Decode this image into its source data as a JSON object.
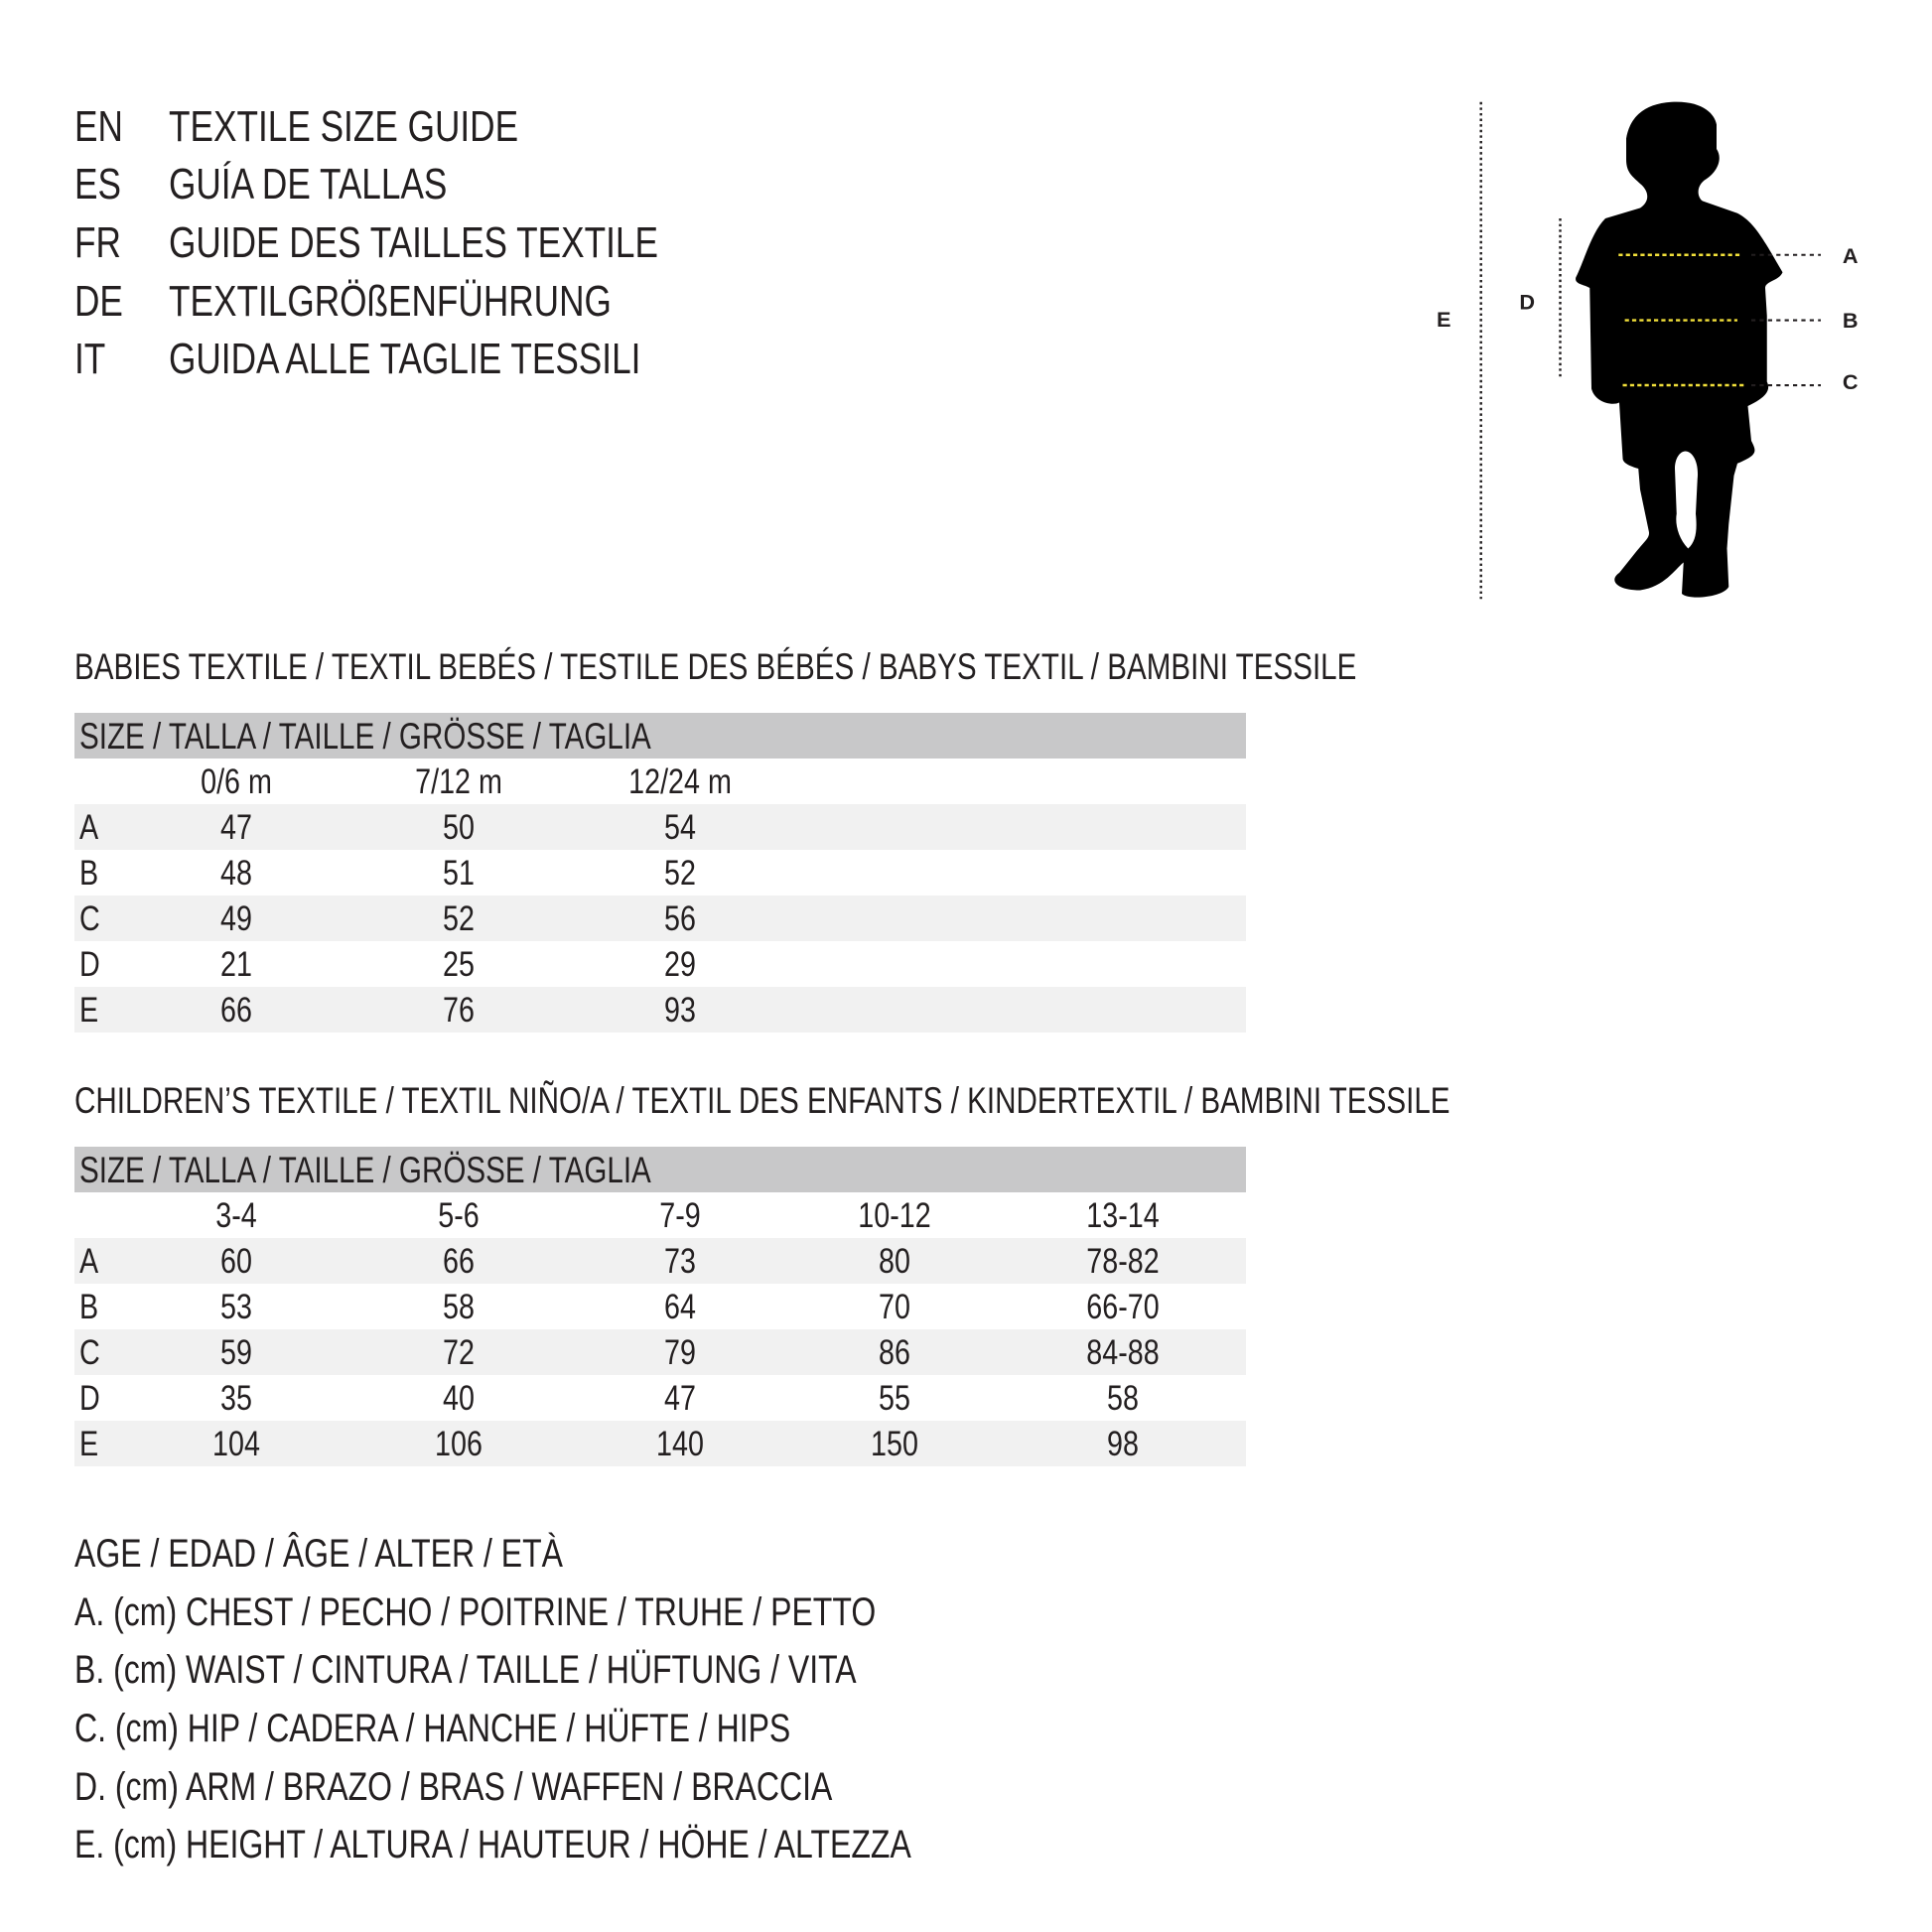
{
  "header": [
    {
      "code": "EN",
      "text": "TEXTILE SIZE GUIDE"
    },
    {
      "code": "ES",
      "text": "GUÍA DE TALLAS"
    },
    {
      "code": "FR",
      "text": "GUIDE DES TAILLES TEXTILE"
    },
    {
      "code": "DE",
      "text": "TEXTILGRÖßENFÜHRUNG"
    },
    {
      "code": "IT",
      "text": "GUIDA ALLE TAGLIE TESSILI"
    }
  ],
  "figure": {
    "labels": {
      "A": "A",
      "B": "B",
      "C": "C",
      "D": "D",
      "E": "E"
    },
    "highlight_color": "#f2e03a"
  },
  "babies": {
    "title": "BABIES TEXTILE / TEXTIL BEBÉS / TESTILE DES BÉBÉS / BABYS TEXTIL / BAMBINI TESSILE",
    "size_header": "SIZE / TALLA / TAILLE / GRÖSSE / TAGLIA",
    "columns": [
      "0/6 m",
      "7/12 m",
      "12/24 m"
    ],
    "rows": [
      {
        "label": "A",
        "values": [
          "47",
          "50",
          "54"
        ]
      },
      {
        "label": "B",
        "values": [
          "48",
          "51",
          "52"
        ]
      },
      {
        "label": "C",
        "values": [
          "49",
          "52",
          "56"
        ]
      },
      {
        "label": "D",
        "values": [
          "21",
          "25",
          "29"
        ]
      },
      {
        "label": "E",
        "values": [
          "66",
          "76",
          "93"
        ]
      }
    ]
  },
  "children": {
    "title": "CHILDREN’S TEXTILE / TEXTIL NIÑO/A / TEXTIL DES ENFANTS / KINDERTEXTIL / BAMBINI TESSILE",
    "size_header": "SIZE / TALLA / TAILLE / GRÖSSE / TAGLIA",
    "columns": [
      "3-4",
      "5-6",
      "7-9",
      "10-12",
      "13-14"
    ],
    "rows": [
      {
        "label": "A",
        "values": [
          "60",
          "66",
          "73",
          "80",
          "78-82"
        ]
      },
      {
        "label": "B",
        "values": [
          "53",
          "58",
          "64",
          "70",
          "66-70"
        ]
      },
      {
        "label": "C",
        "values": [
          "59",
          "72",
          "79",
          "86",
          "84-88"
        ]
      },
      {
        "label": "D",
        "values": [
          "35",
          "40",
          "47",
          "55",
          "58"
        ]
      },
      {
        "label": "E",
        "values": [
          "104",
          "106",
          "140",
          "150",
          "98"
        ]
      }
    ]
  },
  "legend": [
    "AGE / EDAD / ÂGE / ALTER / ETÀ",
    "A. (cm) CHEST / PECHO / POITRINE / TRUHE / PETTO",
    "B. (cm) WAIST / CINTURA / TAILLE / HÜFTUNG / VITA",
    "C. (cm) HIP / CADERA / HANCHE / HÜFTE / HIPS",
    "D. (cm) ARM / BRAZO / BRAS / WAFFEN / BRACCIA",
    "E. (cm) HEIGHT / ALTURA / HAUTEUR / HÖHE / ALTEZZA"
  ]
}
